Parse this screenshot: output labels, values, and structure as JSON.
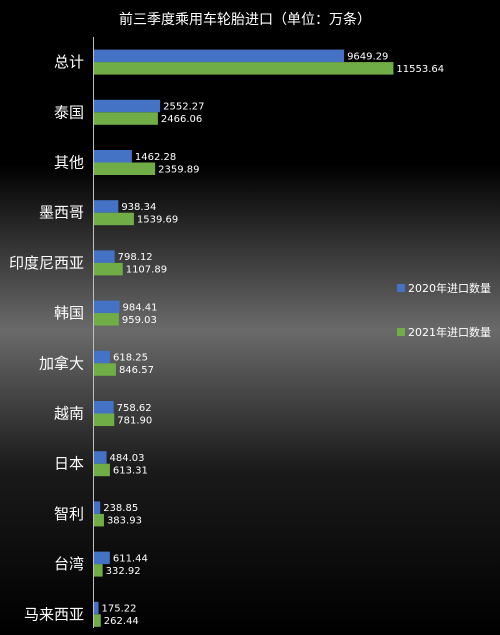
{
  "chart_data": {
    "type": "bar",
    "orientation": "horizontal",
    "title": "前三季度乘用车轮胎进口（单位：万条）",
    "categories": [
      "总计",
      "泰国",
      "其他",
      "墨西哥",
      "印度尼西亚",
      "韩国",
      "加拿大",
      "越南",
      "日本",
      "智利",
      "台湾",
      "马来西亚"
    ],
    "series": [
      {
        "name": "2020年进口数量",
        "color": "#4472c4",
        "values": [
          9649.29,
          2552.27,
          1462.28,
          938.34,
          798.12,
          984.41,
          618.25,
          758.62,
          484.03,
          238.85,
          611.44,
          175.22
        ],
        "labels": [
          "9649.29",
          "2552.27",
          "1462.28",
          "938.34",
          "798.12",
          "984.41",
          "618.25",
          "758.62",
          "484.03",
          "238.85",
          "611.44",
          "175.22"
        ]
      },
      {
        "name": "2021年进口数量",
        "color": "#70ad47",
        "values": [
          11553.64,
          2466.06,
          2359.89,
          1539.69,
          1107.89,
          959.03,
          846.57,
          781.9,
          613.31,
          383.93,
          332.92,
          262.44
        ],
        "labels": [
          "11553.64",
          "2466.06",
          "2359.89",
          "1539.69",
          "1107.89",
          "959.03",
          "846.57",
          "781.90",
          "613.31",
          "383.93",
          "332.92",
          "262.44"
        ]
      }
    ],
    "xlim": [
      0,
      12000
    ],
    "grid": false,
    "legend_position": "right"
  }
}
